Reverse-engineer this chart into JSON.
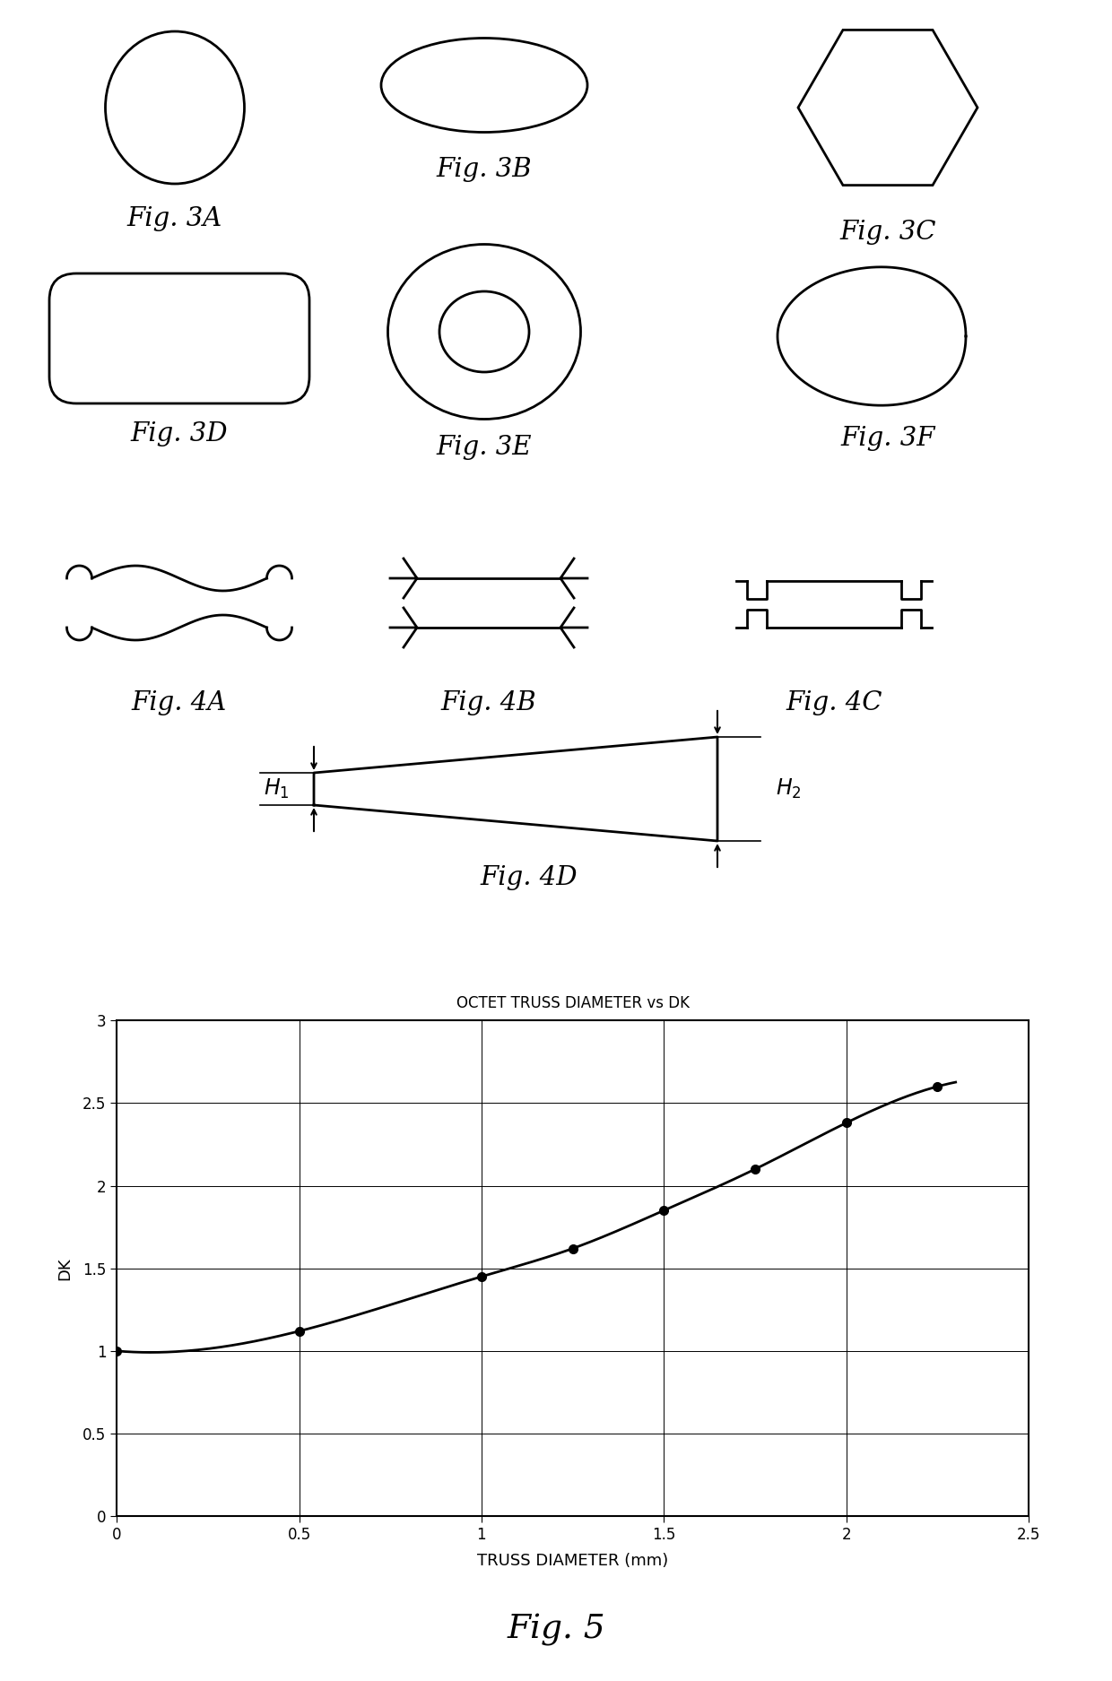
{
  "fig3A_label": "Fig. 3A",
  "fig3B_label": "Fig. 3B",
  "fig3C_label": "Fig. 3C",
  "fig3D_label": "Fig. 3D",
  "fig3E_label": "Fig. 3E",
  "fig3F_label": "Fig. 3F",
  "fig4A_label": "Fig. 4A",
  "fig4B_label": "Fig. 4B",
  "fig4C_label": "Fig. 4C",
  "fig4D_label": "Fig. 4D",
  "fig5_label": "Fig. 5",
  "chart_title": "OCTET TRUSS DIAMETER vs DK",
  "xlabel": "TRUSS DIAMETER (mm)",
  "ylabel": "DK",
  "xlim": [
    0,
    2.5
  ],
  "ylim": [
    0,
    3
  ],
  "xticks": [
    0,
    0.5,
    1.0,
    1.5,
    2.0,
    2.5
  ],
  "yticks": [
    0,
    0.5,
    1.0,
    1.5,
    2.0,
    2.5,
    3.0
  ],
  "data_x": [
    0,
    0.5,
    1.0,
    1.25,
    1.5,
    1.75,
    2.0,
    2.25
  ],
  "data_y": [
    1.0,
    1.12,
    1.45,
    1.62,
    1.85,
    2.1,
    2.38,
    2.6
  ],
  "line_color": "#000000",
  "marker_color": "#000000",
  "bg_color": "#ffffff"
}
